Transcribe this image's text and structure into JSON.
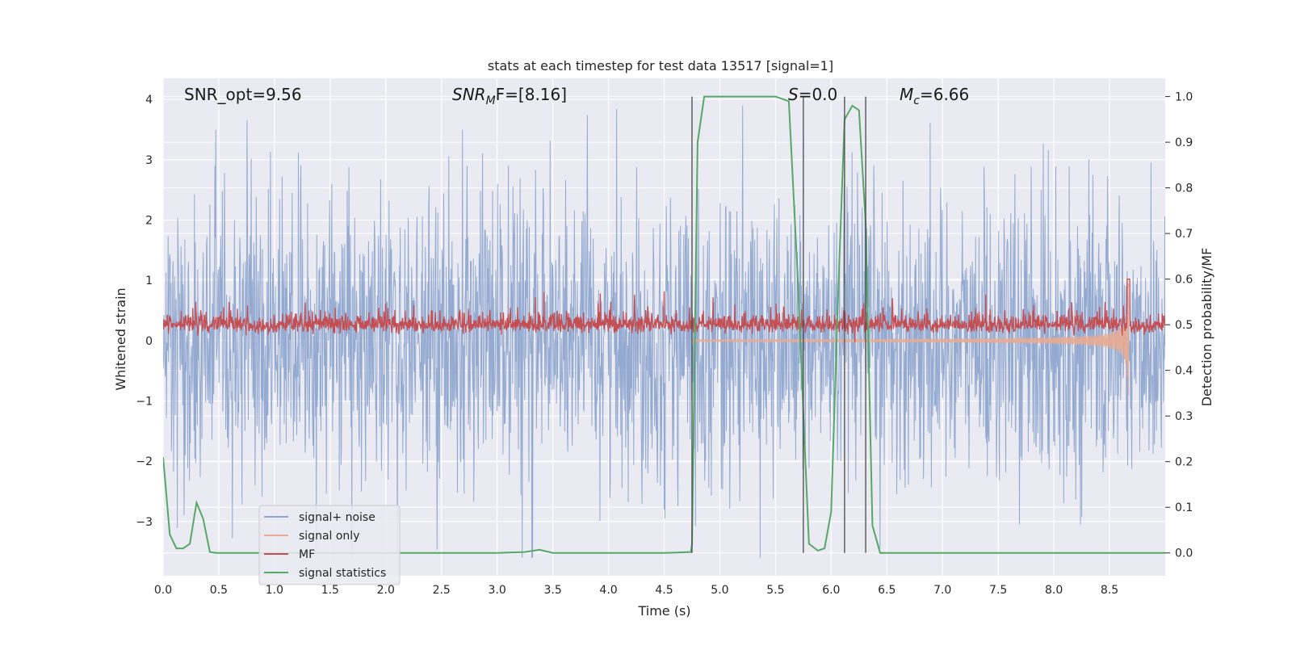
{
  "chart_data": {
    "type": "line",
    "title": "stats at each timestep for test data 13517 [signal=1]",
    "xlabel": "Time (s)",
    "ylabel_left": "Whitened strain",
    "ylabel_right": "Detection probability/MF",
    "xlim": [
      0.0,
      9.0
    ],
    "ylim_left": [
      -3.9,
      4.35
    ],
    "ylim_right": [
      -0.05,
      1.04
    ],
    "x_ticks": [
      0.0,
      0.5,
      1.0,
      1.5,
      2.0,
      2.5,
      3.0,
      3.5,
      4.0,
      4.5,
      5.0,
      5.5,
      6.0,
      6.5,
      7.0,
      7.5,
      8.0,
      8.5
    ],
    "x_tick_labels": [
      "0.0",
      "0.5",
      "1.0",
      "1.5",
      "2.0",
      "2.5",
      "3.0",
      "3.5",
      "4.0",
      "4.5",
      "5.0",
      "5.5",
      "6.0",
      "6.5",
      "7.0",
      "7.5",
      "8.0",
      "8.5"
    ],
    "y_left_ticks": [
      -3,
      -2,
      -1,
      0,
      1,
      2,
      3,
      4
    ],
    "y_left_tick_labels": [
      "−3",
      "−2",
      "−1",
      "0",
      "1",
      "2",
      "3",
      "4"
    ],
    "y_right_ticks": [
      0.0,
      0.1,
      0.2,
      0.3,
      0.4,
      0.5,
      0.6,
      0.7,
      0.8,
      0.9,
      1.0
    ],
    "y_right_tick_labels": [
      "0.0",
      "0.1",
      "0.2",
      "0.3",
      "0.4",
      "0.5",
      "0.6",
      "0.7",
      "0.8",
      "0.9",
      "1.0"
    ],
    "annotations": {
      "snr_opt": "SNR_opt=9.56",
      "snr_mf_main": "SNR",
      "snr_mf_sub": "M",
      "snr_mf_rest": "F=[8.16]",
      "s_main": "S",
      "s_rest": "=0.0",
      "mc_main": "M",
      "mc_sub": "c",
      "mc_rest": "=6.66"
    },
    "vlines": [
      4.75,
      5.75,
      6.12,
      6.31
    ],
    "series": [
      {
        "name": "signal+ noise",
        "color": "#8fa6cf",
        "axis": "left"
      },
      {
        "name": "signal only",
        "color": "#e9ab91",
        "axis": "left"
      },
      {
        "name": "MF",
        "color": "#c44e52",
        "axis": "right"
      },
      {
        "name": "signal statistics",
        "color": "#55a868",
        "axis": "right",
        "x": [
          0.0,
          0.06,
          0.12,
          0.18,
          0.24,
          0.3,
          0.36,
          0.42,
          0.48,
          0.6,
          1.0,
          2.0,
          3.0,
          3.25,
          3.38,
          3.5,
          4.0,
          4.5,
          4.74,
          4.75,
          4.8,
          4.86,
          5.0,
          5.5,
          5.62,
          5.7,
          5.76,
          5.8,
          5.88,
          5.94,
          6.0,
          6.06,
          6.12,
          6.19,
          6.25,
          6.31,
          6.37,
          6.44,
          6.5,
          7.0,
          8.0,
          9.0
        ],
        "values": [
          0.21,
          0.04,
          0.01,
          0.01,
          0.02,
          0.11,
          0.075,
          0.002,
          0.0,
          0.0,
          0.0,
          0.0,
          0.0,
          0.002,
          0.007,
          0.0,
          0.0,
          0.0,
          0.002,
          0.02,
          0.9,
          1.0,
          1.0,
          1.0,
          0.99,
          0.6,
          0.25,
          0.02,
          0.005,
          0.01,
          0.09,
          0.55,
          0.95,
          0.98,
          0.97,
          0.72,
          0.06,
          0.0,
          0.0,
          0.0,
          0.0,
          0.0
        ]
      }
    ],
    "legend": {
      "location": "lower-left",
      "entries": [
        "signal+ noise",
        "signal only",
        "MF",
        "signal statistics"
      ]
    }
  }
}
